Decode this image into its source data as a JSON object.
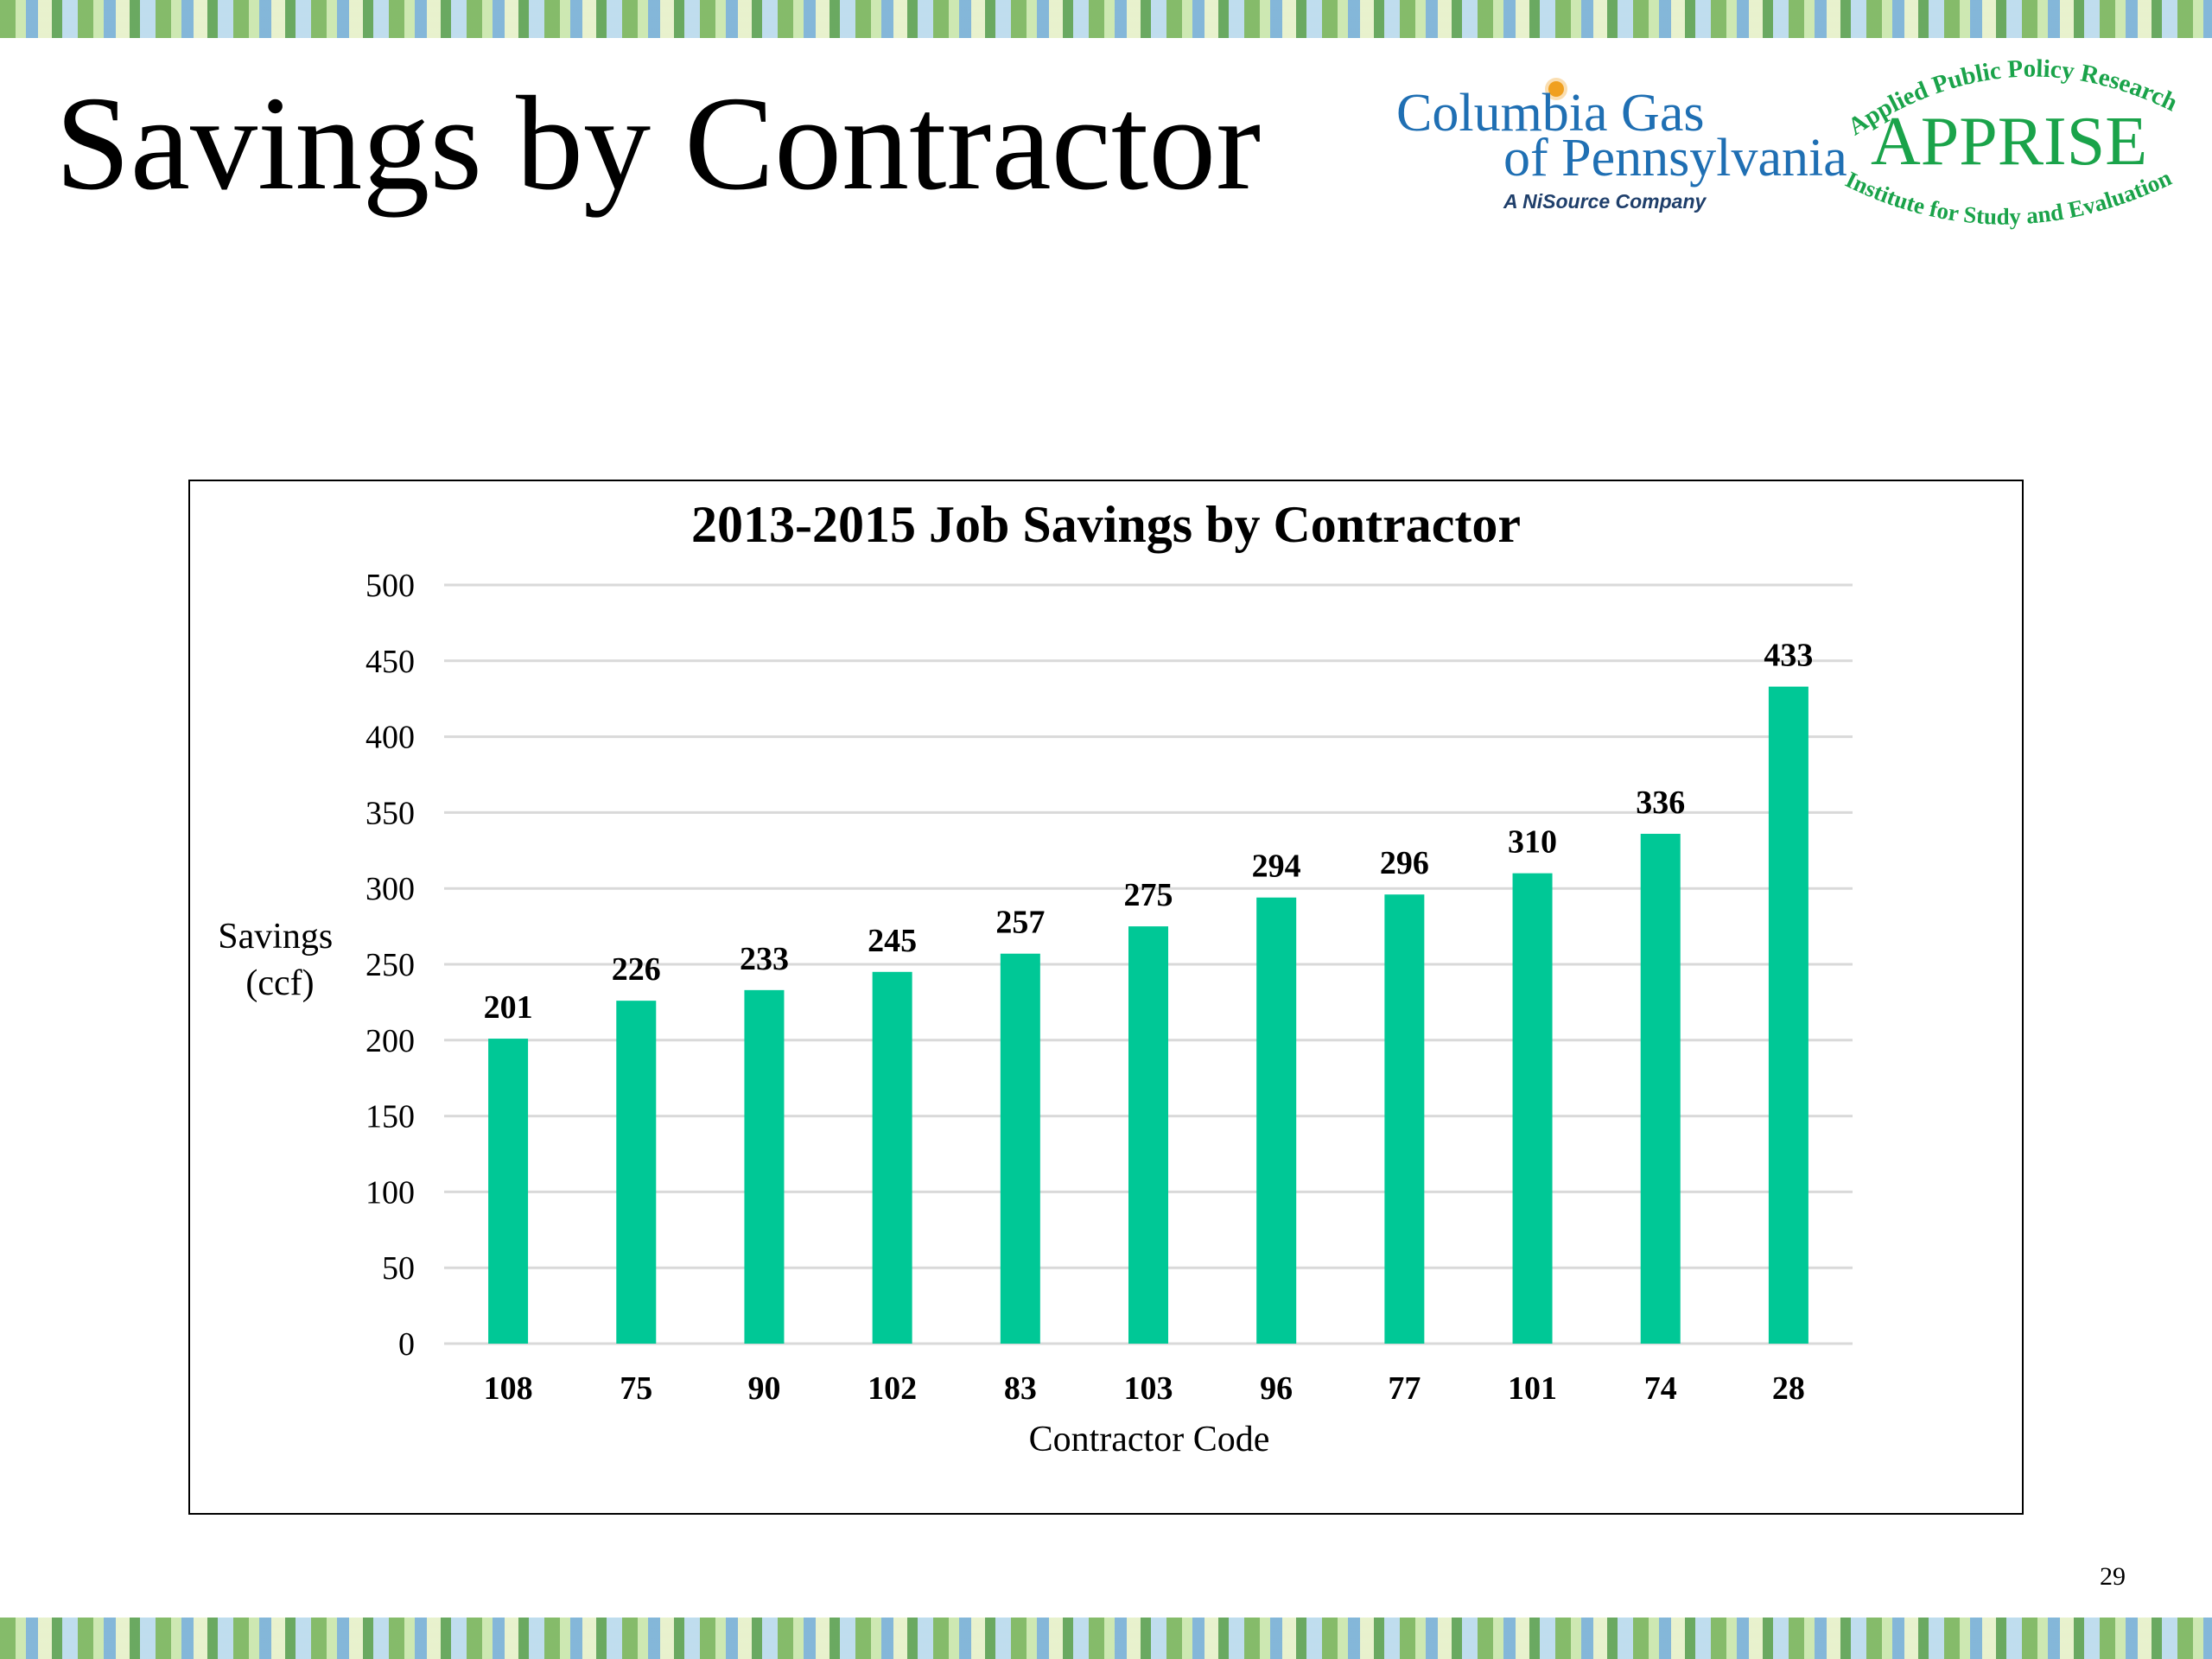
{
  "slide": {
    "title": "Savings by Contractor",
    "page_number": "29"
  },
  "logos": {
    "columbia": {
      "line1": "Columbia Gas",
      "line2": "of Pennsylvania",
      "tagline": "A NiSource Company",
      "color": "#1f6fb3"
    },
    "apprise": {
      "name": "APPRISE",
      "arc_top": "Applied Public Policy Research",
      "arc_bottom": "Institute for Study and Evaluation",
      "color": "#1aa34a"
    }
  },
  "chart_data": {
    "type": "bar",
    "title": "2013-2015 Job Savings by Contractor",
    "xlabel": "Contractor Code",
    "ylabel_lines": [
      "Savings",
      "(ccf)"
    ],
    "categories": [
      "108",
      "75",
      "90",
      "102",
      "83",
      "103",
      "96",
      "77",
      "101",
      "74",
      "28"
    ],
    "values": [
      201,
      226,
      233,
      245,
      257,
      275,
      294,
      296,
      310,
      336,
      433
    ],
    "ylim": [
      0,
      500
    ],
    "yticks": [
      0,
      50,
      100,
      150,
      200,
      250,
      300,
      350,
      400,
      450,
      500
    ],
    "grid": true,
    "legend": "none",
    "bar_color": "#00c896",
    "data_labels": true
  }
}
